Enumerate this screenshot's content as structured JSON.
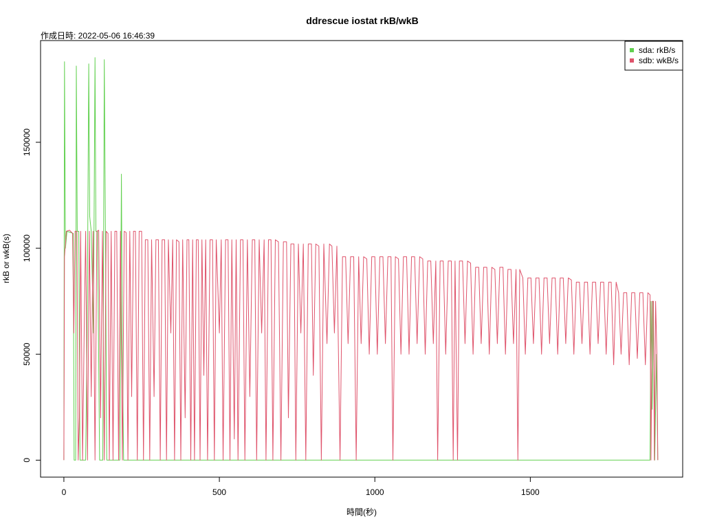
{
  "chart_data": {
    "type": "line",
    "title": "ddrescue iostat rkB/wkB",
    "subtitle": "作成日時: 2022-05-06 16:46:39",
    "xlabel": "時間(秒)",
    "ylabel": "rkB or wkB(s)",
    "xlim": [
      -75,
      1990
    ],
    "ylim": [
      -8000,
      198000
    ],
    "xticks": [
      "0",
      "500",
      "1000",
      "1500"
    ],
    "yticks": [
      "0",
      "50000",
      "100000",
      "150000"
    ],
    "legend_position": "top-right",
    "series": [
      {
        "name": "sda: rkB/s",
        "color": "#61D04F",
        "values": [
          [
            0,
            0
          ],
          [
            2,
            188000
          ],
          [
            5,
            100000
          ],
          [
            10,
            108000
          ],
          [
            30,
            107000
          ],
          [
            33,
            0
          ],
          [
            38,
            0
          ],
          [
            40,
            186000
          ],
          [
            43,
            108000
          ],
          [
            48,
            108000
          ],
          [
            52,
            0
          ],
          [
            70,
            0
          ],
          [
            75,
            60000
          ],
          [
            80,
            187000
          ],
          [
            83,
            115000
          ],
          [
            88,
            108000
          ],
          [
            95,
            60000
          ],
          [
            100,
            190000
          ],
          [
            103,
            108000
          ],
          [
            108,
            108000
          ],
          [
            115,
            0
          ],
          [
            125,
            0
          ],
          [
            130,
            189000
          ],
          [
            134,
            100000
          ],
          [
            138,
            0
          ],
          [
            180,
            0
          ],
          [
            185,
            135000
          ],
          [
            188,
            50000
          ],
          [
            192,
            0
          ],
          [
            300,
            0
          ],
          [
            600,
            0
          ],
          [
            900,
            0
          ],
          [
            1200,
            0
          ],
          [
            1500,
            0
          ],
          [
            1800,
            0
          ],
          [
            1885,
            0
          ],
          [
            1888,
            75000
          ],
          [
            1892,
            24000
          ],
          [
            1895,
            75000
          ],
          [
            1900,
            0
          ],
          [
            1906,
            50000
          ],
          [
            1910,
            0
          ]
        ]
      },
      {
        "name": "sdb: wkB/s",
        "color": "#DF536B",
        "values": [
          [
            0,
            0
          ],
          [
            2,
            96000
          ],
          [
            8,
            108000
          ],
          [
            18,
            108500
          ],
          [
            28,
            107000
          ],
          [
            32,
            60000
          ],
          [
            36,
            108000
          ],
          [
            42,
            108000
          ],
          [
            46,
            0
          ],
          [
            50,
            20000
          ],
          [
            54,
            108000
          ],
          [
            60,
            0
          ],
          [
            66,
            70000
          ],
          [
            70,
            108000
          ],
          [
            76,
            0
          ],
          [
            82,
            108000
          ],
          [
            88,
            30000
          ],
          [
            94,
            108000
          ],
          [
            100,
            0
          ],
          [
            106,
            108000
          ],
          [
            112,
            108500
          ],
          [
            118,
            20000
          ],
          [
            124,
            108000
          ],
          [
            130,
            0
          ],
          [
            136,
            108000
          ],
          [
            142,
            107000
          ],
          [
            146,
            0
          ],
          [
            152,
            108000
          ],
          [
            158,
            0
          ],
          [
            164,
            108000
          ],
          [
            170,
            108000
          ],
          [
            176,
            0
          ],
          [
            182,
            108000
          ],
          [
            188,
            0
          ],
          [
            194,
            108000
          ],
          [
            200,
            107500
          ],
          [
            206,
            0
          ],
          [
            212,
            108000
          ],
          [
            218,
            30000
          ],
          [
            224,
            108000
          ],
          [
            230,
            108000
          ],
          [
            236,
            0
          ],
          [
            242,
            108000
          ],
          [
            250,
            108000
          ],
          [
            256,
            0
          ],
          [
            262,
            104000
          ],
          [
            270,
            104000
          ],
          [
            276,
            0
          ],
          [
            282,
            104000
          ],
          [
            290,
            30000
          ],
          [
            296,
            104000
          ],
          [
            304,
            104000
          ],
          [
            310,
            0
          ],
          [
            316,
            104000
          ],
          [
            324,
            104000
          ],
          [
            330,
            0
          ],
          [
            336,
            104000
          ],
          [
            344,
            60000
          ],
          [
            350,
            104000
          ],
          [
            356,
            0
          ],
          [
            362,
            104000
          ],
          [
            370,
            103000
          ],
          [
            376,
            0
          ],
          [
            382,
            104000
          ],
          [
            390,
            20000
          ],
          [
            396,
            104000
          ],
          [
            402,
            104000
          ],
          [
            408,
            0
          ],
          [
            414,
            104000
          ],
          [
            420,
            0
          ],
          [
            426,
            104000
          ],
          [
            432,
            104000
          ],
          [
            438,
            0
          ],
          [
            444,
            104000
          ],
          [
            450,
            40000
          ],
          [
            456,
            104000
          ],
          [
            462,
            0
          ],
          [
            470,
            104000
          ],
          [
            478,
            104000
          ],
          [
            484,
            0
          ],
          [
            490,
            104000
          ],
          [
            500,
            60000
          ],
          [
            506,
            104000
          ],
          [
            512,
            0
          ],
          [
            520,
            104000
          ],
          [
            528,
            104000
          ],
          [
            534,
            0
          ],
          [
            540,
            104000
          ],
          [
            548,
            10000
          ],
          [
            554,
            104000
          ],
          [
            560,
            0
          ],
          [
            568,
            104000
          ],
          [
            576,
            104000
          ],
          [
            582,
            0
          ],
          [
            590,
            104000
          ],
          [
            598,
            30000
          ],
          [
            606,
            104000
          ],
          [
            614,
            104000
          ],
          [
            620,
            0
          ],
          [
            628,
            104000
          ],
          [
            636,
            60000
          ],
          [
            644,
            104000
          ],
          [
            650,
            0
          ],
          [
            658,
            104000
          ],
          [
            666,
            104000
          ],
          [
            672,
            0
          ],
          [
            680,
            104000
          ],
          [
            690,
            103000
          ],
          [
            698,
            0
          ],
          [
            706,
            103000
          ],
          [
            716,
            103000
          ],
          [
            722,
            20000
          ],
          [
            730,
            102000
          ],
          [
            740,
            102000
          ],
          [
            746,
            0
          ],
          [
            754,
            102000
          ],
          [
            762,
            60000
          ],
          [
            770,
            102000
          ],
          [
            778,
            0
          ],
          [
            786,
            102000
          ],
          [
            796,
            102000
          ],
          [
            802,
            40000
          ],
          [
            810,
            102000
          ],
          [
            820,
            101000
          ],
          [
            828,
            0
          ],
          [
            836,
            102000
          ],
          [
            846,
            55000
          ],
          [
            854,
            102000
          ],
          [
            862,
            101000
          ],
          [
            870,
            60000
          ],
          [
            878,
            101000
          ],
          [
            888,
            0
          ],
          [
            896,
            96000
          ],
          [
            906,
            96000
          ],
          [
            914,
            55000
          ],
          [
            922,
            96000
          ],
          [
            932,
            96000
          ],
          [
            940,
            0
          ],
          [
            948,
            96000
          ],
          [
            956,
            55000
          ],
          [
            964,
            96000
          ],
          [
            974,
            95000
          ],
          [
            982,
            50000
          ],
          [
            990,
            96000
          ],
          [
            1000,
            96000
          ],
          [
            1008,
            50000
          ],
          [
            1016,
            96000
          ],
          [
            1026,
            96000
          ],
          [
            1034,
            55000
          ],
          [
            1042,
            96000
          ],
          [
            1052,
            96000
          ],
          [
            1058,
            0
          ],
          [
            1066,
            96000
          ],
          [
            1076,
            95000
          ],
          [
            1084,
            50000
          ],
          [
            1092,
            96000
          ],
          [
            1102,
            96000
          ],
          [
            1110,
            50000
          ],
          [
            1118,
            96000
          ],
          [
            1128,
            96000
          ],
          [
            1136,
            55000
          ],
          [
            1144,
            96000
          ],
          [
            1154,
            95000
          ],
          [
            1162,
            50000
          ],
          [
            1170,
            94000
          ],
          [
            1180,
            94000
          ],
          [
            1188,
            55000
          ],
          [
            1196,
            94000
          ],
          [
            1202,
            0
          ],
          [
            1210,
            94000
          ],
          [
            1220,
            94000
          ],
          [
            1228,
            50000
          ],
          [
            1236,
            94000
          ],
          [
            1246,
            94000
          ],
          [
            1252,
            0
          ],
          [
            1258,
            94000
          ],
          [
            1266,
            0
          ],
          [
            1272,
            94000
          ],
          [
            1282,
            94000
          ],
          [
            1290,
            55000
          ],
          [
            1298,
            94000
          ],
          [
            1308,
            93000
          ],
          [
            1316,
            50000
          ],
          [
            1324,
            91000
          ],
          [
            1334,
            91000
          ],
          [
            1342,
            55000
          ],
          [
            1350,
            91000
          ],
          [
            1360,
            91000
          ],
          [
            1368,
            50000
          ],
          [
            1376,
            91000
          ],
          [
            1386,
            90000
          ],
          [
            1394,
            55000
          ],
          [
            1402,
            91000
          ],
          [
            1412,
            91000
          ],
          [
            1420,
            50000
          ],
          [
            1428,
            90000
          ],
          [
            1438,
            90000
          ],
          [
            1446,
            55000
          ],
          [
            1454,
            90000
          ],
          [
            1460,
            0
          ],
          [
            1466,
            90000
          ],
          [
            1476,
            86000
          ],
          [
            1484,
            50000
          ],
          [
            1492,
            86000
          ],
          [
            1502,
            86000
          ],
          [
            1510,
            55000
          ],
          [
            1518,
            86000
          ],
          [
            1528,
            86000
          ],
          [
            1536,
            50000
          ],
          [
            1544,
            86000
          ],
          [
            1554,
            86000
          ],
          [
            1562,
            55000
          ],
          [
            1570,
            86000
          ],
          [
            1580,
            86000
          ],
          [
            1588,
            50000
          ],
          [
            1596,
            86000
          ],
          [
            1606,
            86000
          ],
          [
            1614,
            55000
          ],
          [
            1622,
            86000
          ],
          [
            1632,
            85000
          ],
          [
            1640,
            50000
          ],
          [
            1648,
            84000
          ],
          [
            1658,
            84000
          ],
          [
            1666,
            55000
          ],
          [
            1674,
            84000
          ],
          [
            1684,
            84000
          ],
          [
            1692,
            50000
          ],
          [
            1700,
            84000
          ],
          [
            1710,
            84000
          ],
          [
            1718,
            55000
          ],
          [
            1726,
            84000
          ],
          [
            1736,
            84000
          ],
          [
            1744,
            50000
          ],
          [
            1752,
            84000
          ],
          [
            1760,
            84000
          ],
          [
            1768,
            45000
          ],
          [
            1776,
            84000
          ],
          [
            1784,
            79000
          ],
          [
            1792,
            50000
          ],
          [
            1800,
            79000
          ],
          [
            1810,
            79000
          ],
          [
            1818,
            45000
          ],
          [
            1826,
            79000
          ],
          [
            1836,
            79000
          ],
          [
            1844,
            48000
          ],
          [
            1852,
            79000
          ],
          [
            1862,
            79000
          ],
          [
            1870,
            45000
          ],
          [
            1878,
            79000
          ],
          [
            1885,
            78000
          ],
          [
            1888,
            0
          ],
          [
            1892,
            75000
          ],
          [
            1896,
            75000
          ],
          [
            1899,
            0
          ],
          [
            1903,
            75000
          ],
          [
            1907,
            50000
          ],
          [
            1910,
            0
          ]
        ]
      }
    ]
  }
}
